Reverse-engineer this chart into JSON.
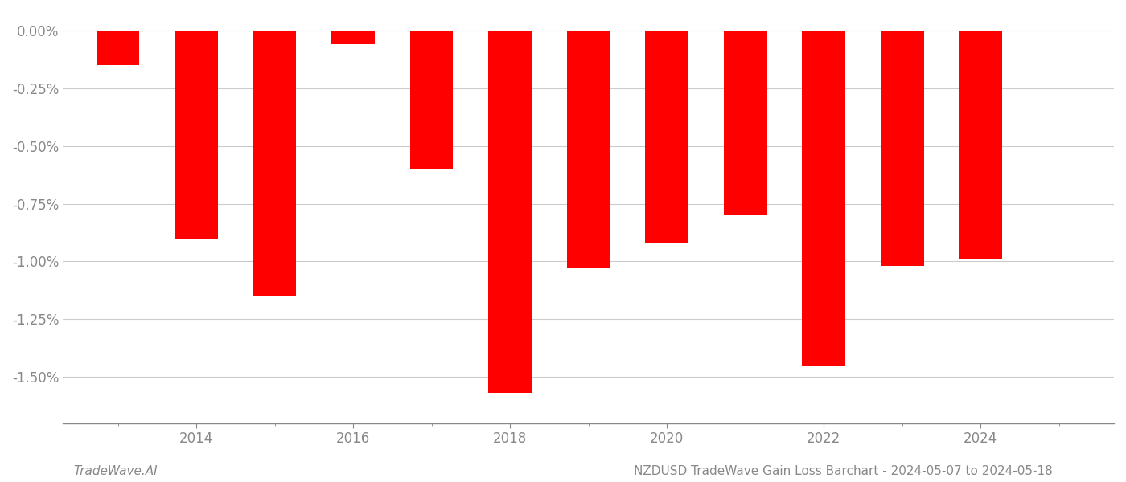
{
  "years": [
    2013,
    2014,
    2015,
    2016,
    2017,
    2018,
    2019,
    2020,
    2021,
    2022,
    2023,
    2024
  ],
  "values": [
    -0.0015,
    -0.009,
    -0.0115,
    -0.0006,
    -0.006,
    -0.0157,
    -0.0103,
    -0.0092,
    -0.008,
    -0.0145,
    -0.0102,
    -0.0099
  ],
  "bar_color": "#ff0000",
  "background_color": "#ffffff",
  "grid_color": "#cccccc",
  "tick_color": "#888888",
  "ytick_values": [
    0.0,
    -0.0025,
    -0.005,
    -0.0075,
    -0.01,
    -0.0125,
    -0.015
  ],
  "ylim": [
    -0.017,
    0.0008
  ],
  "xlim": [
    2012.3,
    2025.7
  ],
  "footer_left": "TradeWave.AI",
  "footer_right": "NZDUSD TradeWave Gain Loss Barchart - 2024-05-07 to 2024-05-18",
  "bar_width": 0.55,
  "tick_fontsize": 12,
  "footer_fontsize": 11
}
